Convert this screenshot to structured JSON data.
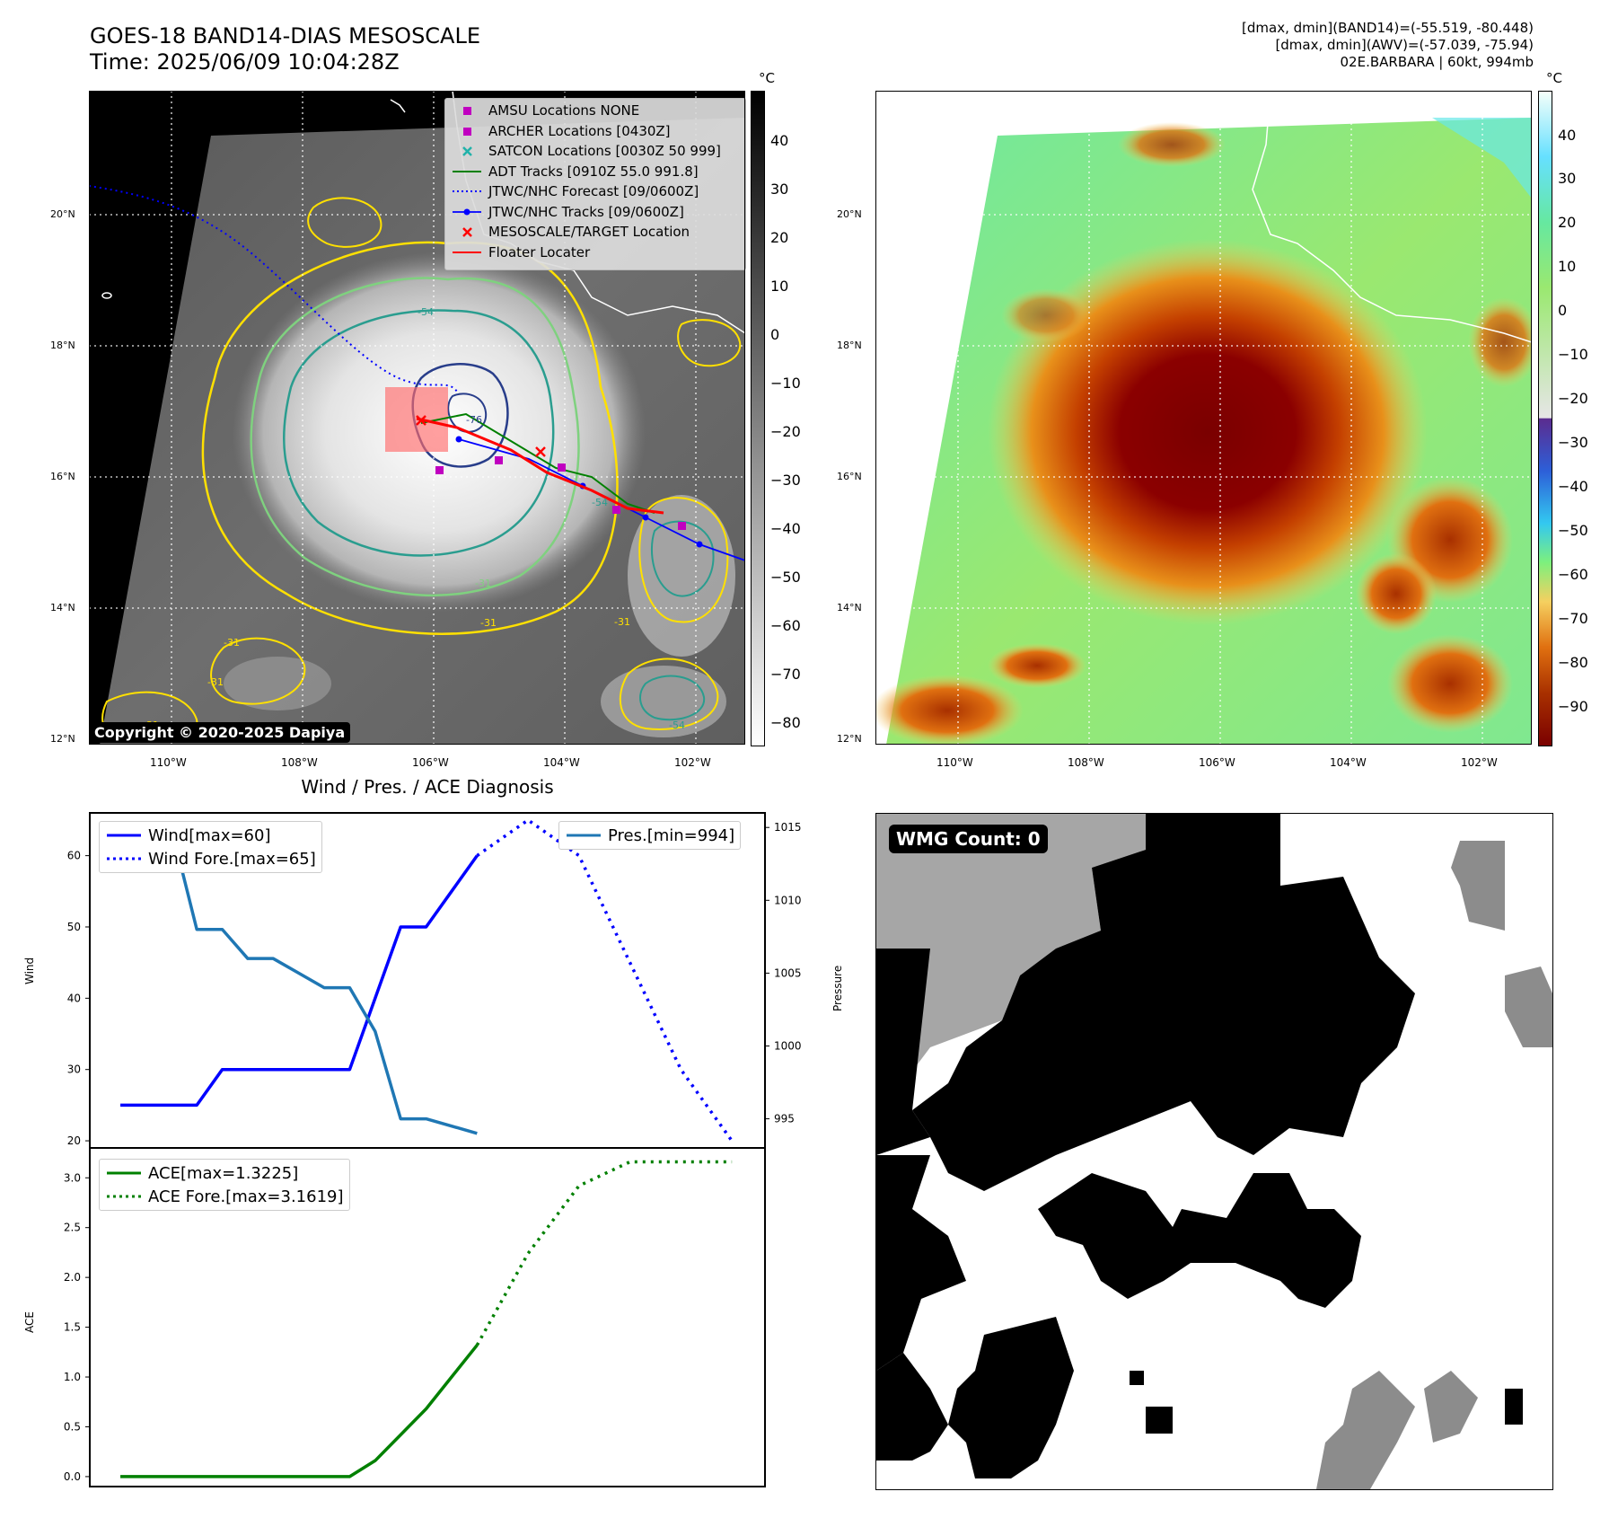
{
  "header": {
    "title_line1": "GOES-18 BAND14-DIAS MESOSCALE",
    "title_line2": "Time: 2025/06/09 10:04:28Z",
    "info_line1": "[dmax, dmin](BAND14)=(-55.519, -80.448)",
    "info_line2": "[dmax, dmin](AWV)=(-57.039, -75.94)",
    "info_line3": "02E.BARBARA | 60kt, 994mb"
  },
  "map_axes": {
    "x_ticks": [
      "110°W",
      "108°W",
      "106°W",
      "104°W",
      "102°W"
    ],
    "y_ticks": [
      "20°N",
      "18°N",
      "16°N",
      "14°N",
      "12°N"
    ]
  },
  "ir_panel": {
    "colorbar_unit": "°C",
    "colorbar_ticks": [
      "40",
      "30",
      "20",
      "10",
      "0",
      "−10",
      "−20",
      "−30",
      "−40",
      "−50",
      "−60",
      "−70",
      "−80"
    ],
    "contour_labels": [
      "-54",
      "-31",
      "-31",
      "-31",
      "-31",
      "-31",
      "-54",
      "-76",
      "-54",
      "-31"
    ],
    "watermark": "Copyright © 2020-2025 Dapiya",
    "legend": [
      {
        "label": "AMSU Locations NONE",
        "symbol": "square",
        "color": "#c000c0"
      },
      {
        "label": "ARCHER Locations [0430Z]",
        "symbol": "square",
        "color": "#c000c0"
      },
      {
        "label": "SATCON Locations [0030Z 50 999]",
        "symbol": "x",
        "color": "#20b2aa"
      },
      {
        "label": "ADT Tracks [0910Z 55.0 991.8]",
        "symbol": "line",
        "color": "#008000"
      },
      {
        "label": "JTWC/NHC Forecast [09/0600Z]",
        "symbol": "dotted",
        "color": "#0000ff"
      },
      {
        "label": "JTWC/NHC Tracks [09/0600Z]",
        "symbol": "line-dot",
        "color": "#0000ff"
      },
      {
        "label": "MESOSCALE/TARGET Location",
        "symbol": "x",
        "color": "#ff0000"
      },
      {
        "label": "Floater Locater",
        "symbol": "line",
        "color": "#ff0000"
      }
    ]
  },
  "awv_panel": {
    "colorbar_unit": "°C",
    "colorbar_ticks": [
      "40",
      "30",
      "20",
      "10",
      "0",
      "−10",
      "−20",
      "−30",
      "−40",
      "−50",
      "−60",
      "−70",
      "−80",
      "−90"
    ]
  },
  "diag_panel": {
    "title": "Wind / Pres. / ACE Diagnosis",
    "wind_ylabel": "Wind",
    "pres_ylabel": "Pressure",
    "ace_ylabel": "ACE",
    "wind_ticks": [
      "60",
      "50",
      "40",
      "30",
      "20"
    ],
    "pres_ticks": [
      "1015",
      "1010",
      "1005",
      "1000",
      "995"
    ],
    "ace_ticks": [
      "3.0",
      "2.5",
      "2.0",
      "1.5",
      "1.0",
      "0.5",
      "0.0"
    ],
    "legend_wind": "Wind[max=60]",
    "legend_wind_fore": "Wind Fore.[max=65]",
    "legend_pres": "Pres.[min=994]",
    "legend_ace": "ACE[max=1.3225]",
    "legend_ace_fore": "ACE Fore.[max=3.1619]"
  },
  "wmg_panel": {
    "label": "WMG Count: 0"
  },
  "chart_data": [
    {
      "type": "line",
      "title": "Wind / Pres. / ACE Diagnosis",
      "ylabel": "Wind",
      "ylim": [
        19,
        66
      ],
      "series": [
        {
          "name": "Wind[max=60]",
          "x": [
            0,
            1,
            2,
            3,
            4,
            5,
            6,
            7,
            8,
            9,
            10,
            11,
            12,
            13,
            14
          ],
          "values": [
            25,
            25,
            25,
            25,
            30,
            30,
            30,
            30,
            30,
            30,
            40,
            50,
            50,
            55,
            60
          ],
          "style": "solid",
          "color": "#0000ff"
        },
        {
          "name": "Wind Fore.[max=65]",
          "x": [
            14,
            16,
            18,
            20,
            22,
            24
          ],
          "values": [
            60,
            65,
            60,
            45,
            30,
            20
          ],
          "style": "dotted",
          "color": "#0000ff"
        }
      ]
    },
    {
      "type": "line",
      "ylabel": "Pressure",
      "ylim": [
        993,
        1016
      ],
      "series": [
        {
          "name": "Pres.[min=994]",
          "x": [
            0,
            1,
            2,
            3,
            4,
            5,
            6,
            7,
            8,
            9,
            10,
            11,
            12,
            13,
            14
          ],
          "values": [
            1015,
            1015,
            1015,
            1008,
            1008,
            1006,
            1006,
            1005,
            1004,
            1004,
            1001,
            995,
            995,
            994.5,
            994
          ],
          "style": "solid",
          "color": "#1f77b4"
        }
      ]
    },
    {
      "type": "line",
      "ylabel": "ACE",
      "ylim": [
        -0.1,
        3.3
      ],
      "series": [
        {
          "name": "ACE[max=1.3225]",
          "x": [
            0,
            1,
            2,
            3,
            4,
            5,
            6,
            7,
            8,
            9,
            10,
            11,
            12,
            13,
            14
          ],
          "values": [
            0,
            0,
            0,
            0,
            0,
            0,
            0,
            0,
            0,
            0,
            0.16,
            0.42,
            0.68,
            1.0,
            1.32
          ],
          "style": "solid",
          "color": "#008000"
        },
        {
          "name": "ACE Fore.[max=3.1619]",
          "x": [
            14,
            16,
            18,
            20,
            22,
            24
          ],
          "values": [
            1.32,
            2.24,
            2.92,
            3.16,
            3.16,
            3.16
          ],
          "style": "dotted",
          "color": "#008000"
        }
      ]
    }
  ]
}
